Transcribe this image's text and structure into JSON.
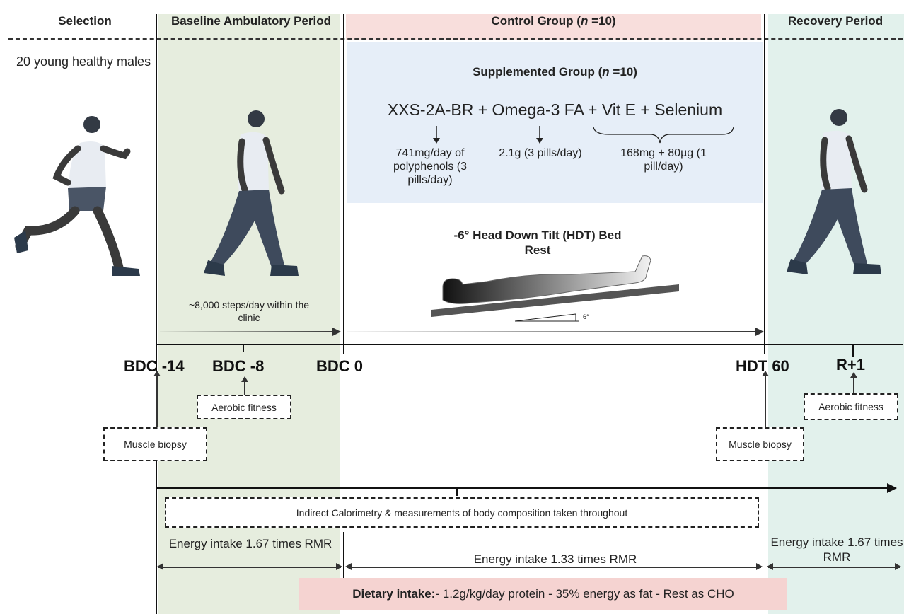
{
  "headers": {
    "selection": "Selection",
    "baseline": "Baseline Ambulatory Period",
    "control": "Control Group (",
    "control_n": "n",
    "control_count": " =10)",
    "recovery": "Recovery Period"
  },
  "selection_text": "20 young healthy males",
  "supplement": {
    "title": "Supplemented Group (",
    "title_n": "n",
    "title_count": " =10)",
    "formula": "XXS-2A-BR + Omega-3 FA + Vit E + Selenium",
    "dose1": "741mg/day of polyphenols (3 pills/day)",
    "dose2": "2.1g (3 pills/day)",
    "dose3": "168mg + 80µg (1 pill/day)"
  },
  "hdt": {
    "title": "-6° Head Down Tilt (HDT) Bed Rest",
    "angle": "6°"
  },
  "steps_text": "~8,000 steps/day within the clinic",
  "timepoints": {
    "bdc14": "BDC -14",
    "bdc8": "BDC -8",
    "bdc0": "BDC 0",
    "hdt60": "HDT 60",
    "r1": "R+1"
  },
  "measures": {
    "aerobic1": "Aerobic fitness",
    "aerobic2": "Aerobic fitness",
    "biopsy1": "Muscle biopsy",
    "biopsy2": "Muscle biopsy",
    "calorimetry": "Indirect Calorimetry & measurements of body composition taken throughout"
  },
  "energy": {
    "baseline": "Energy intake 1.67 times RMR",
    "bedrest": "Energy intake 1.33 times RMR",
    "recovery": "Energy intake 1.67 times RMR"
  },
  "diet": {
    "label": "Dietary intake:",
    "text": " - 1.2g/kg/day protein - 35% energy as fat - Rest as CHO"
  },
  "icons": [
    "running-man-icon",
    "walking-man-icon",
    "lying-person-icon",
    "walking-man-icon"
  ],
  "colors": {
    "baseline_bg": "#e6edde",
    "control_bg": "#f8dedc",
    "supplement_bg": "#e6eef8",
    "recovery_bg": "#e2f1ec",
    "diet_bg": "#f5d3d1"
  }
}
